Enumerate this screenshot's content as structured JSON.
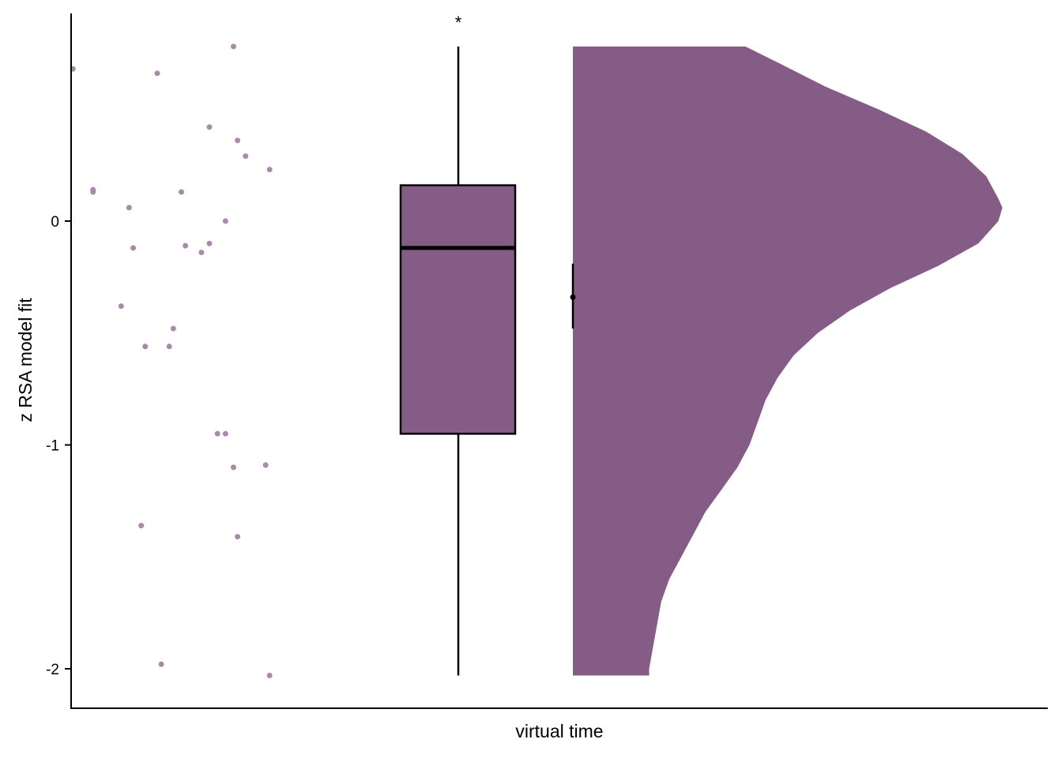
{
  "chart_data": {
    "type": "raincloud",
    "xlabel": "virtual time",
    "ylabel": "z RSA model fit",
    "ylim": [
      -2.18,
      0.93
    ],
    "y_ticks": [
      0,
      -1,
      -2
    ],
    "y_tick_labels": [
      "0",
      "-1",
      "-2"
    ],
    "significance_label": "*",
    "fill_color": "#845c85",
    "point_color": "#a98aab",
    "points": [
      {
        "x": -0.96,
        "y": 0.68
      },
      {
        "x": -0.75,
        "y": 0.66
      },
      {
        "x": -0.62,
        "y": 0.42
      },
      {
        "x": -0.56,
        "y": 0.78
      },
      {
        "x": -0.55,
        "y": 0.36
      },
      {
        "x": -0.53,
        "y": 0.29
      },
      {
        "x": -0.47,
        "y": 0.23
      },
      {
        "x": -0.91,
        "y": 0.14
      },
      {
        "x": -0.91,
        "y": 0.13
      },
      {
        "x": -0.69,
        "y": 0.13
      },
      {
        "x": -0.82,
        "y": 0.06
      },
      {
        "x": -0.58,
        "y": 0.0
      },
      {
        "x": -0.81,
        "y": -0.12
      },
      {
        "x": -0.68,
        "y": -0.11
      },
      {
        "x": -0.64,
        "y": -0.14
      },
      {
        "x": -0.62,
        "y": -0.1
      },
      {
        "x": -0.84,
        "y": -0.38
      },
      {
        "x": -0.71,
        "y": -0.48
      },
      {
        "x": -0.78,
        "y": -0.56
      },
      {
        "x": -0.72,
        "y": -0.56
      },
      {
        "x": -0.58,
        "y": -0.95
      },
      {
        "x": -0.6,
        "y": -0.95
      },
      {
        "x": -0.56,
        "y": -1.1
      },
      {
        "x": -0.48,
        "y": -1.09
      },
      {
        "x": -0.79,
        "y": -1.36
      },
      {
        "x": -0.55,
        "y": -1.41
      },
      {
        "x": -0.74,
        "y": -1.98
      },
      {
        "x": -0.47,
        "y": -2.03
      }
    ],
    "box": {
      "min": -2.03,
      "q1": -0.95,
      "median": -0.12,
      "q3": 0.16,
      "max": 0.78
    },
    "mean_point": {
      "mean": -0.34,
      "lower": -0.48,
      "upper": -0.19
    },
    "density": {
      "y": [
        0.78,
        0.7,
        0.6,
        0.5,
        0.4,
        0.3,
        0.2,
        0.1,
        0.06,
        0.0,
        -0.1,
        -0.2,
        -0.3,
        -0.4,
        -0.5,
        -0.6,
        -0.7,
        -0.8,
        -0.9,
        -1.0,
        -1.1,
        -1.2,
        -1.3,
        -1.4,
        -1.5,
        -1.6,
        -1.7,
        -1.8,
        -1.9,
        -2.0,
        -2.03
      ],
      "width": [
        0.43,
        0.52,
        0.63,
        0.76,
        0.88,
        0.97,
        1.03,
        1.06,
        1.07,
        1.06,
        1.01,
        0.91,
        0.79,
        0.69,
        0.61,
        0.55,
        0.51,
        0.48,
        0.46,
        0.44,
        0.41,
        0.37,
        0.33,
        0.3,
        0.27,
        0.24,
        0.22,
        0.21,
        0.2,
        0.19,
        0.19
      ]
    }
  }
}
